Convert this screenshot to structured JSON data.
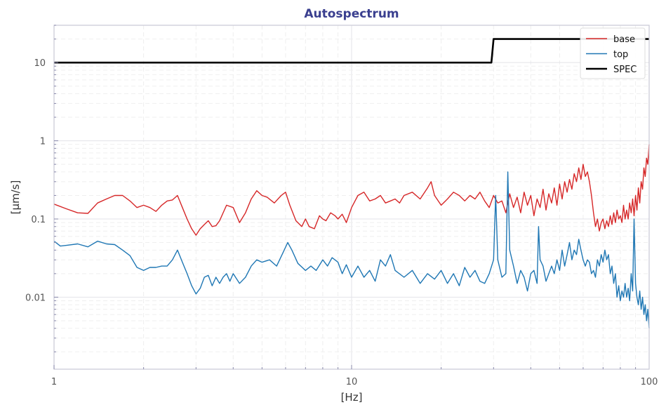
{
  "chart_data": {
    "type": "line",
    "title": "Autospectrum",
    "xlabel": "[Hz]",
    "ylabel": "[μm/s]",
    "xscale": "log",
    "yscale": "log",
    "xlim": [
      1,
      100
    ],
    "ylim": [
      0.0012,
      30
    ],
    "x_ticks": [
      {
        "value": 1,
        "label": "1"
      },
      {
        "value": 10,
        "label": "10"
      },
      {
        "value": 100,
        "label": "100"
      }
    ],
    "y_ticks": [
      {
        "value": 0.01,
        "label": "0.01"
      },
      {
        "value": 0.1,
        "label": "0.1"
      },
      {
        "value": 1,
        "label": "1"
      },
      {
        "value": 10,
        "label": "10"
      }
    ],
    "grid": true,
    "legend_position": "top-right",
    "series": [
      {
        "name": "base",
        "color": "#d62728",
        "points": [
          [
            1,
            0.155
          ],
          [
            1.1,
            0.135
          ],
          [
            1.2,
            0.12
          ],
          [
            1.3,
            0.118
          ],
          [
            1.4,
            0.16
          ],
          [
            1.5,
            0.18
          ],
          [
            1.6,
            0.2
          ],
          [
            1.7,
            0.2
          ],
          [
            1.8,
            0.17
          ],
          [
            1.9,
            0.14
          ],
          [
            2.0,
            0.15
          ],
          [
            2.1,
            0.14
          ],
          [
            2.2,
            0.125
          ],
          [
            2.3,
            0.15
          ],
          [
            2.4,
            0.17
          ],
          [
            2.5,
            0.175
          ],
          [
            2.6,
            0.2
          ],
          [
            2.7,
            0.14
          ],
          [
            2.8,
            0.1
          ],
          [
            2.9,
            0.075
          ],
          [
            3.0,
            0.062
          ],
          [
            3.1,
            0.075
          ],
          [
            3.2,
            0.085
          ],
          [
            3.3,
            0.095
          ],
          [
            3.4,
            0.08
          ],
          [
            3.5,
            0.082
          ],
          [
            3.6,
            0.095
          ],
          [
            3.8,
            0.15
          ],
          [
            4.0,
            0.14
          ],
          [
            4.2,
            0.09
          ],
          [
            4.4,
            0.12
          ],
          [
            4.6,
            0.18
          ],
          [
            4.8,
            0.23
          ],
          [
            5.0,
            0.2
          ],
          [
            5.2,
            0.19
          ],
          [
            5.5,
            0.16
          ],
          [
            5.8,
            0.2
          ],
          [
            6.0,
            0.22
          ],
          [
            6.2,
            0.15
          ],
          [
            6.5,
            0.095
          ],
          [
            6.8,
            0.08
          ],
          [
            7.0,
            0.1
          ],
          [
            7.2,
            0.08
          ],
          [
            7.5,
            0.075
          ],
          [
            7.8,
            0.11
          ],
          [
            8.0,
            0.1
          ],
          [
            8.2,
            0.095
          ],
          [
            8.5,
            0.12
          ],
          [
            8.8,
            0.11
          ],
          [
            9.0,
            0.1
          ],
          [
            9.3,
            0.115
          ],
          [
            9.6,
            0.09
          ],
          [
            10,
            0.14
          ],
          [
            10.5,
            0.2
          ],
          [
            11,
            0.22
          ],
          [
            11.5,
            0.17
          ],
          [
            12,
            0.18
          ],
          [
            12.5,
            0.2
          ],
          [
            13,
            0.16
          ],
          [
            13.5,
            0.17
          ],
          [
            14,
            0.18
          ],
          [
            14.5,
            0.16
          ],
          [
            15,
            0.2
          ],
          [
            16,
            0.22
          ],
          [
            17,
            0.18
          ],
          [
            18,
            0.25
          ],
          [
            18.5,
            0.3
          ],
          [
            19,
            0.2
          ],
          [
            20,
            0.15
          ],
          [
            21,
            0.18
          ],
          [
            22,
            0.22
          ],
          [
            23,
            0.2
          ],
          [
            24,
            0.17
          ],
          [
            25,
            0.2
          ],
          [
            26,
            0.18
          ],
          [
            27,
            0.22
          ],
          [
            28,
            0.17
          ],
          [
            29,
            0.14
          ],
          [
            30,
            0.2
          ],
          [
            31,
            0.16
          ],
          [
            32,
            0.17
          ],
          [
            33,
            0.12
          ],
          [
            34,
            0.21
          ],
          [
            35,
            0.14
          ],
          [
            36,
            0.19
          ],
          [
            37,
            0.12
          ],
          [
            38,
            0.22
          ],
          [
            39,
            0.15
          ],
          [
            40,
            0.2
          ],
          [
            41,
            0.11
          ],
          [
            42,
            0.18
          ],
          [
            43,
            0.14
          ],
          [
            44,
            0.24
          ],
          [
            45,
            0.13
          ],
          [
            46,
            0.21
          ],
          [
            47,
            0.16
          ],
          [
            48,
            0.25
          ],
          [
            49,
            0.15
          ],
          [
            50,
            0.28
          ],
          [
            51,
            0.18
          ],
          [
            52,
            0.3
          ],
          [
            53,
            0.22
          ],
          [
            54,
            0.32
          ],
          [
            55,
            0.24
          ],
          [
            56,
            0.38
          ],
          [
            57,
            0.3
          ],
          [
            58,
            0.45
          ],
          [
            59,
            0.32
          ],
          [
            60,
            0.5
          ],
          [
            61,
            0.35
          ],
          [
            62,
            0.4
          ],
          [
            63,
            0.3
          ],
          [
            64,
            0.2
          ],
          [
            65,
            0.12
          ],
          [
            66,
            0.08
          ],
          [
            67,
            0.1
          ],
          [
            68,
            0.07
          ],
          [
            69,
            0.09
          ],
          [
            70,
            0.1
          ],
          [
            71,
            0.075
          ],
          [
            72,
            0.095
          ],
          [
            73,
            0.08
          ],
          [
            74,
            0.11
          ],
          [
            75,
            0.085
          ],
          [
            76,
            0.12
          ],
          [
            77,
            0.09
          ],
          [
            78,
            0.13
          ],
          [
            79,
            0.1
          ],
          [
            80,
            0.11
          ],
          [
            81,
            0.09
          ],
          [
            82,
            0.15
          ],
          [
            83,
            0.1
          ],
          [
            84,
            0.13
          ],
          [
            85,
            0.1
          ],
          [
            86,
            0.16
          ],
          [
            87,
            0.12
          ],
          [
            88,
            0.18
          ],
          [
            89,
            0.11
          ],
          [
            90,
            0.2
          ],
          [
            91,
            0.13
          ],
          [
            92,
            0.25
          ],
          [
            93,
            0.16
          ],
          [
            94,
            0.3
          ],
          [
            95,
            0.24
          ],
          [
            96,
            0.45
          ],
          [
            97,
            0.35
          ],
          [
            98,
            0.6
          ],
          [
            99,
            0.5
          ],
          [
            100,
            0.9
          ]
        ]
      },
      {
        "name": "top",
        "color": "#1f77b4",
        "points": [
          [
            1,
            0.052
          ],
          [
            1.05,
            0.045
          ],
          [
            1.1,
            0.046
          ],
          [
            1.2,
            0.048
          ],
          [
            1.3,
            0.044
          ],
          [
            1.4,
            0.052
          ],
          [
            1.5,
            0.048
          ],
          [
            1.6,
            0.047
          ],
          [
            1.7,
            0.04
          ],
          [
            1.8,
            0.034
          ],
          [
            1.9,
            0.024
          ],
          [
            2.0,
            0.022
          ],
          [
            2.1,
            0.024
          ],
          [
            2.2,
            0.024
          ],
          [
            2.3,
            0.025
          ],
          [
            2.4,
            0.025
          ],
          [
            2.5,
            0.03
          ],
          [
            2.6,
            0.04
          ],
          [
            2.7,
            0.028
          ],
          [
            2.8,
            0.02
          ],
          [
            2.9,
            0.014
          ],
          [
            3.0,
            0.011
          ],
          [
            3.1,
            0.013
          ],
          [
            3.2,
            0.018
          ],
          [
            3.3,
            0.019
          ],
          [
            3.4,
            0.014
          ],
          [
            3.5,
            0.018
          ],
          [
            3.6,
            0.015
          ],
          [
            3.7,
            0.018
          ],
          [
            3.8,
            0.02
          ],
          [
            3.9,
            0.016
          ],
          [
            4.0,
            0.02
          ],
          [
            4.2,
            0.015
          ],
          [
            4.4,
            0.018
          ],
          [
            4.6,
            0.025
          ],
          [
            4.8,
            0.03
          ],
          [
            5.0,
            0.028
          ],
          [
            5.3,
            0.03
          ],
          [
            5.6,
            0.025
          ],
          [
            5.9,
            0.038
          ],
          [
            6.1,
            0.05
          ],
          [
            6.3,
            0.04
          ],
          [
            6.6,
            0.027
          ],
          [
            7.0,
            0.022
          ],
          [
            7.3,
            0.025
          ],
          [
            7.6,
            0.022
          ],
          [
            8.0,
            0.03
          ],
          [
            8.3,
            0.025
          ],
          [
            8.6,
            0.032
          ],
          [
            9.0,
            0.028
          ],
          [
            9.3,
            0.02
          ],
          [
            9.6,
            0.026
          ],
          [
            10,
            0.018
          ],
          [
            10.5,
            0.025
          ],
          [
            11,
            0.018
          ],
          [
            11.5,
            0.022
          ],
          [
            12,
            0.016
          ],
          [
            12.5,
            0.03
          ],
          [
            13,
            0.025
          ],
          [
            13.5,
            0.035
          ],
          [
            14,
            0.022
          ],
          [
            15,
            0.018
          ],
          [
            16,
            0.022
          ],
          [
            17,
            0.015
          ],
          [
            18,
            0.02
          ],
          [
            19,
            0.017
          ],
          [
            20,
            0.022
          ],
          [
            21,
            0.015
          ],
          [
            22,
            0.02
          ],
          [
            23,
            0.014
          ],
          [
            24,
            0.024
          ],
          [
            25,
            0.018
          ],
          [
            26,
            0.022
          ],
          [
            27,
            0.016
          ],
          [
            28,
            0.015
          ],
          [
            29,
            0.02
          ],
          [
            30,
            0.03
          ],
          [
            30.5,
            0.2
          ],
          [
            31,
            0.03
          ],
          [
            32,
            0.018
          ],
          [
            33,
            0.02
          ],
          [
            33.5,
            0.4
          ],
          [
            34,
            0.04
          ],
          [
            35,
            0.025
          ],
          [
            36,
            0.015
          ],
          [
            37,
            0.022
          ],
          [
            38,
            0.018
          ],
          [
            39,
            0.012
          ],
          [
            40,
            0.02
          ],
          [
            41,
            0.022
          ],
          [
            42,
            0.015
          ],
          [
            42.5,
            0.08
          ],
          [
            43,
            0.03
          ],
          [
            44,
            0.025
          ],
          [
            45,
            0.016
          ],
          [
            46,
            0.02
          ],
          [
            47,
            0.025
          ],
          [
            48,
            0.02
          ],
          [
            49,
            0.03
          ],
          [
            50,
            0.022
          ],
          [
            51,
            0.04
          ],
          [
            52,
            0.025
          ],
          [
            53,
            0.035
          ],
          [
            54,
            0.05
          ],
          [
            55,
            0.03
          ],
          [
            56,
            0.04
          ],
          [
            57,
            0.035
          ],
          [
            58,
            0.055
          ],
          [
            59,
            0.04
          ],
          [
            60,
            0.03
          ],
          [
            61,
            0.025
          ],
          [
            62,
            0.03
          ],
          [
            63,
            0.028
          ],
          [
            64,
            0.02
          ],
          [
            65,
            0.022
          ],
          [
            66,
            0.018
          ],
          [
            67,
            0.03
          ],
          [
            68,
            0.025
          ],
          [
            69,
            0.035
          ],
          [
            70,
            0.028
          ],
          [
            71,
            0.04
          ],
          [
            72,
            0.03
          ],
          [
            73,
            0.035
          ],
          [
            74,
            0.02
          ],
          [
            75,
            0.025
          ],
          [
            76,
            0.015
          ],
          [
            77,
            0.02
          ],
          [
            78,
            0.01
          ],
          [
            79,
            0.014
          ],
          [
            80,
            0.009
          ],
          [
            81,
            0.012
          ],
          [
            82,
            0.01
          ],
          [
            83,
            0.015
          ],
          [
            84,
            0.01
          ],
          [
            85,
            0.013
          ],
          [
            86,
            0.009
          ],
          [
            87,
            0.02
          ],
          [
            88,
            0.012
          ],
          [
            89,
            0.1
          ],
          [
            90,
            0.015
          ],
          [
            91,
            0.01
          ],
          [
            92,
            0.008
          ],
          [
            93,
            0.012
          ],
          [
            94,
            0.007
          ],
          [
            95,
            0.01
          ],
          [
            96,
            0.006
          ],
          [
            97,
            0.008
          ],
          [
            98,
            0.005
          ],
          [
            99,
            0.007
          ],
          [
            100,
            0.004
          ]
        ]
      },
      {
        "name": "SPEC",
        "color": "#000000",
        "points": [
          [
            1,
            10
          ],
          [
            29.5,
            10
          ],
          [
            30,
            20
          ],
          [
            100,
            20
          ]
        ]
      }
    ]
  }
}
